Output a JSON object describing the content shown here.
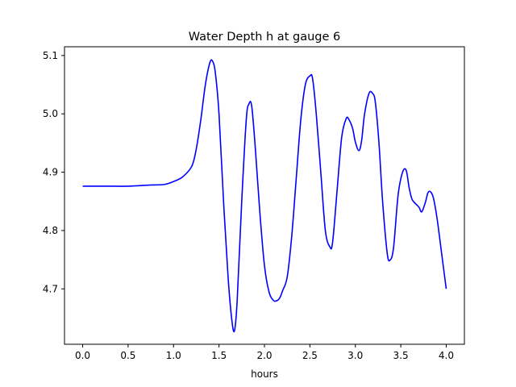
{
  "chart_data": {
    "type": "line",
    "title": "Water Depth h at gauge 6",
    "xlabel": "hours",
    "ylabel": "",
    "xlim": [
      -0.2,
      4.2
    ],
    "ylim": [
      4.605,
      5.115
    ],
    "xticks": [
      0.0,
      0.5,
      1.0,
      1.5,
      2.0,
      2.5,
      3.0,
      3.5,
      4.0
    ],
    "xtick_labels": [
      "0.0",
      "0.5",
      "1.0",
      "1.5",
      "2.0",
      "2.5",
      "3.0",
      "3.5",
      "4.0"
    ],
    "yticks": [
      4.7,
      4.8,
      4.9,
      5.0,
      5.1
    ],
    "ytick_labels": [
      "4.7",
      "4.8",
      "4.9",
      "5.0",
      "5.1"
    ],
    "grid": false,
    "line_color": "#0000ff",
    "series": [
      {
        "x": [
          0.0,
          0.25,
          0.5,
          0.75,
          0.9,
          1.0,
          1.1,
          1.2,
          1.25,
          1.3,
          1.35,
          1.4,
          1.43,
          1.46,
          1.5,
          1.55,
          1.6,
          1.64,
          1.67,
          1.7,
          1.75,
          1.8,
          1.83,
          1.86,
          1.9,
          1.95,
          2.0,
          2.05,
          2.1,
          2.14,
          2.17,
          2.2,
          2.25,
          2.3,
          2.35,
          2.4,
          2.45,
          2.5,
          2.53,
          2.57,
          2.62,
          2.67,
          2.72,
          2.75,
          2.8,
          2.85,
          2.9,
          2.93,
          2.97,
          3.0,
          3.04,
          3.07,
          3.1,
          3.15,
          3.19,
          3.22,
          3.26,
          3.3,
          3.35,
          3.38,
          3.42,
          3.47,
          3.52,
          3.56,
          3.59,
          3.62,
          3.65,
          3.7,
          3.73,
          3.77,
          3.8,
          3.83,
          3.86,
          3.9,
          3.95,
          4.0
        ],
        "y": [
          4.876,
          4.876,
          4.876,
          4.878,
          4.879,
          4.884,
          4.892,
          4.91,
          4.94,
          4.99,
          5.05,
          5.088,
          5.09,
          5.07,
          5.0,
          4.85,
          4.72,
          4.648,
          4.628,
          4.68,
          4.85,
          4.99,
          5.017,
          5.013,
          4.94,
          4.83,
          4.74,
          4.695,
          4.68,
          4.68,
          4.685,
          4.697,
          4.72,
          4.79,
          4.89,
          4.99,
          5.05,
          5.065,
          5.06,
          5.0,
          4.9,
          4.8,
          4.772,
          4.78,
          4.87,
          4.96,
          4.992,
          4.99,
          4.975,
          4.952,
          4.937,
          4.955,
          4.998,
          5.035,
          5.035,
          5.02,
          4.95,
          4.85,
          4.762,
          4.749,
          4.77,
          4.86,
          4.9,
          4.903,
          4.875,
          4.855,
          4.848,
          4.84,
          4.832,
          4.848,
          4.865,
          4.866,
          4.855,
          4.82,
          4.76,
          4.7
        ]
      }
    ]
  }
}
